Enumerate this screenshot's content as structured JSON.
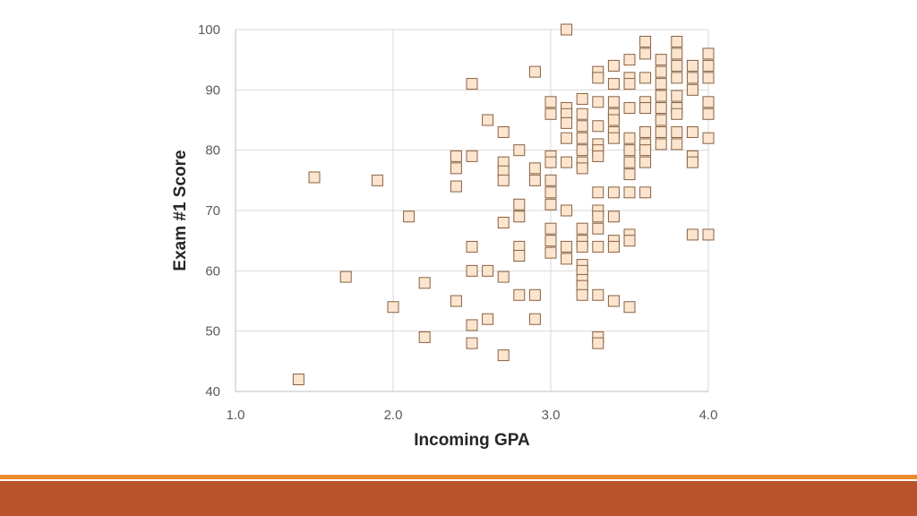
{
  "chart_data": {
    "type": "scatter",
    "title": "",
    "xlabel": "Incoming GPA",
    "ylabel": "Exam #1 Score",
    "xlim": [
      1.0,
      4.0
    ],
    "ylim": [
      40,
      100
    ],
    "xticks": [
      1.0,
      2.0,
      3.0,
      4.0
    ],
    "xtick_labels": [
      "1.0",
      "2.0",
      "3.0",
      "4.0"
    ],
    "yticks": [
      40,
      50,
      60,
      70,
      80,
      90,
      100
    ],
    "ytick_labels": [
      "40",
      "50",
      "60",
      "70",
      "80",
      "90",
      "100"
    ],
    "grid": true,
    "marker": "square",
    "marker_color": "#fbe5cf",
    "marker_edge_color": "#8a6040",
    "series": [
      {
        "points": [
          [
            1.4,
            42
          ],
          [
            1.5,
            75.5
          ],
          [
            1.7,
            59
          ],
          [
            1.9,
            75
          ],
          [
            2.0,
            54
          ],
          [
            2.1,
            69
          ],
          [
            2.2,
            58
          ],
          [
            2.2,
            49
          ],
          [
            2.4,
            79
          ],
          [
            2.4,
            77
          ],
          [
            2.4,
            74
          ],
          [
            2.4,
            55
          ],
          [
            2.5,
            91
          ],
          [
            2.5,
            79
          ],
          [
            2.5,
            64
          ],
          [
            2.5,
            60
          ],
          [
            2.5,
            51
          ],
          [
            2.5,
            48
          ],
          [
            2.6,
            85
          ],
          [
            2.6,
            60
          ],
          [
            2.6,
            52
          ],
          [
            2.7,
            83
          ],
          [
            2.7,
            78
          ],
          [
            2.7,
            76.5
          ],
          [
            2.7,
            75
          ],
          [
            2.7,
            68
          ],
          [
            2.7,
            59
          ],
          [
            2.7,
            46
          ],
          [
            2.8,
            80
          ],
          [
            2.8,
            71
          ],
          [
            2.8,
            69
          ],
          [
            2.8,
            64
          ],
          [
            2.8,
            62.5
          ],
          [
            2.8,
            56
          ],
          [
            2.9,
            93
          ],
          [
            2.9,
            77
          ],
          [
            2.9,
            75
          ],
          [
            2.9,
            56
          ],
          [
            2.9,
            52
          ],
          [
            3.0,
            88
          ],
          [
            3.0,
            86
          ],
          [
            3.0,
            79
          ],
          [
            3.0,
            78
          ],
          [
            3.0,
            75
          ],
          [
            3.0,
            73
          ],
          [
            3.0,
            71
          ],
          [
            3.0,
            67
          ],
          [
            3.0,
            65
          ],
          [
            3.0,
            63
          ],
          [
            3.1,
            100
          ],
          [
            3.1,
            87
          ],
          [
            3.1,
            86
          ],
          [
            3.1,
            84.5
          ],
          [
            3.1,
            82
          ],
          [
            3.1,
            78
          ],
          [
            3.1,
            70
          ],
          [
            3.1,
            64
          ],
          [
            3.1,
            62
          ],
          [
            3.2,
            88.5
          ],
          [
            3.2,
            86
          ],
          [
            3.2,
            84
          ],
          [
            3.2,
            82
          ],
          [
            3.2,
            80
          ],
          [
            3.2,
            78
          ],
          [
            3.2,
            77
          ],
          [
            3.2,
            67
          ],
          [
            3.2,
            65
          ],
          [
            3.2,
            64
          ],
          [
            3.2,
            61
          ],
          [
            3.2,
            60
          ],
          [
            3.2,
            58.5
          ],
          [
            3.2,
            57.5
          ],
          [
            3.2,
            56
          ],
          [
            3.3,
            93
          ],
          [
            3.3,
            92
          ],
          [
            3.3,
            88
          ],
          [
            3.3,
            84
          ],
          [
            3.3,
            81
          ],
          [
            3.3,
            80
          ],
          [
            3.3,
            79
          ],
          [
            3.3,
            73
          ],
          [
            3.3,
            70
          ],
          [
            3.3,
            69
          ],
          [
            3.3,
            67
          ],
          [
            3.3,
            64
          ],
          [
            3.3,
            56
          ],
          [
            3.3,
            49
          ],
          [
            3.3,
            48
          ],
          [
            3.4,
            94
          ],
          [
            3.4,
            91
          ],
          [
            3.4,
            88
          ],
          [
            3.4,
            86
          ],
          [
            3.4,
            85
          ],
          [
            3.4,
            83
          ],
          [
            3.4,
            82
          ],
          [
            3.4,
            73
          ],
          [
            3.4,
            69
          ],
          [
            3.4,
            65
          ],
          [
            3.4,
            64
          ],
          [
            3.4,
            55
          ],
          [
            3.5,
            95
          ],
          [
            3.5,
            92
          ],
          [
            3.5,
            91
          ],
          [
            3.5,
            87
          ],
          [
            3.5,
            82
          ],
          [
            3.5,
            80
          ],
          [
            3.5,
            78
          ],
          [
            3.5,
            76
          ],
          [
            3.5,
            73
          ],
          [
            3.5,
            66
          ],
          [
            3.5,
            65
          ],
          [
            3.5,
            54
          ],
          [
            3.6,
            98
          ],
          [
            3.6,
            96
          ],
          [
            3.6,
            92
          ],
          [
            3.6,
            88
          ],
          [
            3.6,
            87
          ],
          [
            3.6,
            83
          ],
          [
            3.6,
            81
          ],
          [
            3.6,
            80
          ],
          [
            3.6,
            78
          ],
          [
            3.6,
            73
          ],
          [
            3.7,
            95
          ],
          [
            3.7,
            93
          ],
          [
            3.7,
            91
          ],
          [
            3.7,
            89
          ],
          [
            3.7,
            87
          ],
          [
            3.7,
            85
          ],
          [
            3.7,
            83
          ],
          [
            3.7,
            81
          ],
          [
            3.8,
            98
          ],
          [
            3.8,
            96
          ],
          [
            3.8,
            94
          ],
          [
            3.8,
            92
          ],
          [
            3.8,
            89
          ],
          [
            3.8,
            87
          ],
          [
            3.8,
            86
          ],
          [
            3.8,
            83
          ],
          [
            3.8,
            81
          ],
          [
            3.9,
            94
          ],
          [
            3.9,
            92
          ],
          [
            3.9,
            90
          ],
          [
            3.9,
            83
          ],
          [
            3.9,
            79
          ],
          [
            3.9,
            78
          ],
          [
            3.9,
            66
          ],
          [
            4.0,
            96
          ],
          [
            4.0,
            94
          ],
          [
            4.0,
            92
          ],
          [
            4.0,
            88
          ],
          [
            4.0,
            86
          ],
          [
            4.0,
            82
          ],
          [
            4.0,
            66
          ]
        ]
      }
    ]
  }
}
